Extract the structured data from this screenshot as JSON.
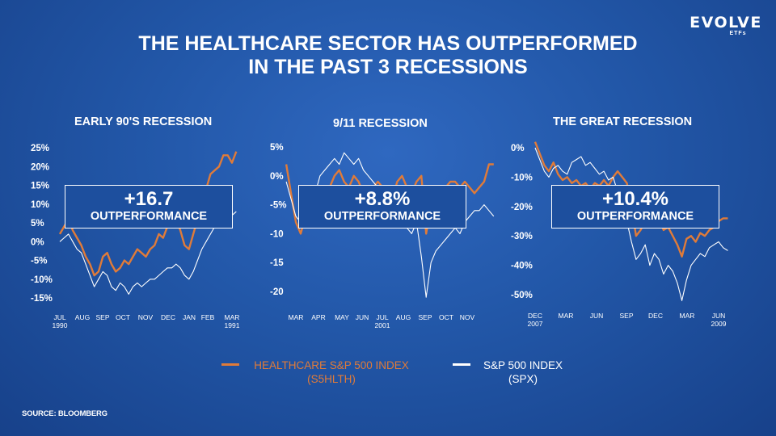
{
  "logo": {
    "main": "EVOLVE",
    "sub": "ETFs"
  },
  "title": {
    "line1": "THE HEALTHCARE SECTOR HAS OUTPERFORMED",
    "line2": "IN THE PAST 3 RECESSIONS"
  },
  "legend": {
    "healthcare_line1": "HEALTHCARE S&P 500 INDEX",
    "healthcare_line2": "(S5HLTH)",
    "spx_line1": "S&P 500 INDEX",
    "spx_line2": "(SPX)"
  },
  "source": "SOURCE: BLOOMBERG",
  "colors": {
    "healthcare": "#e07b39",
    "spx": "#ffffff",
    "background": "#2257a8"
  },
  "chart_data": [
    {
      "type": "line",
      "title": "EARLY 90'S RECESSION",
      "y_ticks": [
        "25%",
        "20%",
        "15%",
        "10%",
        "5%",
        "0%",
        "-5%",
        "-10%",
        "-15%"
      ],
      "y_tick_values": [
        25,
        20,
        15,
        10,
        5,
        0,
        -5,
        -10,
        -15
      ],
      "ylim": [
        -15,
        25
      ],
      "x_ticks": [
        [
          "JUL",
          "1990"
        ],
        [
          "AUG",
          ""
        ],
        [
          "SEP",
          ""
        ],
        [
          "OCT",
          ""
        ],
        [
          "NOV",
          ""
        ],
        [
          "DEC",
          ""
        ],
        [
          "JAN",
          ""
        ],
        [
          "FEB",
          ""
        ],
        [
          "MAR",
          "1991"
        ]
      ],
      "x_tick_positions": [
        0,
        1,
        2,
        3,
        4,
        5,
        6,
        7,
        8
      ],
      "annotation": {
        "value": "+16.7",
        "label": "OUTPERFORMANCE"
      },
      "series": [
        {
          "name": "HEALTHCARE S&P 500 INDEX",
          "x": [
            0,
            0.2,
            0.4,
            0.6,
            0.8,
            1.0,
            1.2,
            1.4,
            1.6,
            1.8,
            2.0,
            2.2,
            2.4,
            2.6,
            2.8,
            3.0,
            3.2,
            3.4,
            3.6,
            3.8,
            4.0,
            4.2,
            4.4,
            4.6,
            4.8,
            5.0,
            5.2,
            5.4,
            5.6,
            5.8,
            6.0,
            6.2,
            6.4,
            6.6,
            6.8,
            7.0,
            7.2,
            7.4,
            7.6,
            7.8,
            8.0,
            8.2
          ],
          "values": [
            2,
            4,
            6,
            3,
            1,
            -1,
            -4,
            -6,
            -9,
            -8,
            -4,
            -3,
            -6,
            -8,
            -7,
            -5,
            -6,
            -4,
            -2,
            -3,
            -4,
            -2,
            -1,
            2,
            1,
            4,
            5,
            6,
            3,
            -1,
            -2,
            2,
            6,
            12,
            14,
            18,
            19,
            20,
            23,
            23,
            21,
            24
          ]
        },
        {
          "name": "S&P 500 INDEX",
          "x": [
            0,
            0.2,
            0.4,
            0.6,
            0.8,
            1.0,
            1.2,
            1.4,
            1.6,
            1.8,
            2.0,
            2.2,
            2.4,
            2.6,
            2.8,
            3.0,
            3.2,
            3.4,
            3.6,
            3.8,
            4.0,
            4.2,
            4.4,
            4.6,
            4.8,
            5.0,
            5.2,
            5.4,
            5.6,
            5.8,
            6.0,
            6.2,
            6.4,
            6.6,
            6.8,
            7.0,
            7.2,
            7.4,
            7.6,
            7.8,
            8.0,
            8.2
          ],
          "values": [
            0,
            1,
            2,
            0,
            -2,
            -3,
            -6,
            -9,
            -12,
            -10,
            -8,
            -9,
            -12,
            -13,
            -11,
            -12,
            -14,
            -12,
            -11,
            -12,
            -11,
            -10,
            -10,
            -9,
            -8,
            -7,
            -7,
            -6,
            -7,
            -9,
            -10,
            -8,
            -5,
            -2,
            0,
            2,
            4,
            5,
            6,
            6,
            7,
            8
          ]
        }
      ]
    },
    {
      "type": "line",
      "title": "9/11 RECESSION",
      "y_ticks": [
        "5%",
        "0%",
        "-5%",
        "-10",
        "-15",
        "-20"
      ],
      "y_tick_values": [
        5,
        0,
        -5,
        -10,
        -15,
        -20
      ],
      "ylim": [
        -20,
        5
      ],
      "x_ticks": [
        [
          "MAR",
          ""
        ],
        [
          "APR",
          ""
        ],
        [
          "MAY",
          ""
        ],
        [
          "JUN",
          ""
        ],
        [
          "JUL",
          "2001"
        ],
        [
          "AUG",
          ""
        ],
        [
          "SEP",
          ""
        ],
        [
          "OCT",
          ""
        ],
        [
          "NOV",
          ""
        ]
      ],
      "x_tick_positions": [
        0,
        1,
        2,
        2.7,
        3.7,
        4.6,
        5.4,
        6.3,
        7.1
      ],
      "annotation": {
        "value": "+8.8%",
        "label": "OUTPERFORMANCE"
      },
      "series": [
        {
          "name": "HEALTHCARE S&P 500 INDEX",
          "x": [
            -0.4,
            -0.2,
            0,
            0.2,
            0.4,
            0.6,
            0.8,
            1.0,
            1.2,
            1.4,
            1.6,
            1.8,
            2.0,
            2.2,
            2.4,
            2.6,
            2.8,
            3.0,
            3.2,
            3.4,
            3.6,
            3.8,
            4.0,
            4.2,
            4.4,
            4.6,
            4.8,
            5.0,
            5.2,
            5.4,
            5.6,
            5.8,
            6.0,
            6.2,
            6.4,
            6.6,
            6.8,
            7.0,
            7.2,
            7.4,
            7.6,
            7.8,
            8.0,
            8.2
          ],
          "values": [
            2,
            -3,
            -8,
            -10,
            -7,
            -5,
            -6,
            -4,
            -3,
            -2,
            0,
            1,
            -1,
            -2,
            0,
            -1,
            -3,
            -2,
            -2,
            -1,
            -2,
            -3,
            -4,
            -1,
            0,
            -2,
            -3,
            -1,
            0,
            -10,
            -5,
            -4,
            -3,
            -2,
            -1,
            -1,
            -2,
            -1,
            -2,
            -3,
            -2,
            -1,
            2,
            2
          ]
        },
        {
          "name": "S&P 500 INDEX",
          "x": [
            -0.4,
            -0.2,
            0,
            0.2,
            0.4,
            0.6,
            0.8,
            1.0,
            1.2,
            1.4,
            1.6,
            1.8,
            2.0,
            2.2,
            2.4,
            2.6,
            2.8,
            3.0,
            3.2,
            3.4,
            3.6,
            3.8,
            4.0,
            4.2,
            4.4,
            4.6,
            4.8,
            5.0,
            5.2,
            5.4,
            5.6,
            5.8,
            6.0,
            6.2,
            6.4,
            6.6,
            6.8,
            7.0,
            7.2,
            7.4,
            7.6,
            7.8,
            8.0,
            8.2
          ],
          "values": [
            -1,
            -4,
            -7,
            -8,
            -6,
            -4,
            -3,
            0,
            1,
            2,
            3,
            2,
            4,
            3,
            2,
            3,
            1,
            0,
            -1,
            -2,
            -3,
            -4,
            -5,
            -6,
            -7,
            -9,
            -10,
            -8,
            -14,
            -21,
            -15,
            -13,
            -12,
            -11,
            -10,
            -9,
            -10,
            -8,
            -7,
            -6,
            -6,
            -5,
            -6,
            -7
          ]
        }
      ]
    },
    {
      "type": "line",
      "title": "THE GREAT RECESSION",
      "y_ticks": [
        "0%",
        "-10%",
        "-20%",
        "-30%",
        "-40%",
        "-50%"
      ],
      "y_tick_values": [
        0,
        -10,
        -20,
        -30,
        -40,
        -50
      ],
      "ylim": [
        -50,
        0
      ],
      "x_ticks": [
        [
          "DEC",
          "2007"
        ],
        [
          "MAR",
          ""
        ],
        [
          "JUN",
          ""
        ],
        [
          "SEP",
          ""
        ],
        [
          "DEC",
          ""
        ],
        [
          "MAR",
          ""
        ],
        [
          "JUN",
          "2009"
        ]
      ],
      "x_tick_positions": [
        0,
        1,
        2,
        3,
        4,
        5,
        6
      ],
      "annotation": {
        "value": "+10.4%",
        "label": "OUTPERFORMANCE"
      },
      "series": [
        {
          "name": "HEALTHCARE S&P 500 INDEX",
          "x": [
            0,
            0.15,
            0.3,
            0.45,
            0.6,
            0.75,
            0.9,
            1.05,
            1.2,
            1.35,
            1.5,
            1.65,
            1.8,
            1.95,
            2.1,
            2.25,
            2.4,
            2.55,
            2.7,
            2.85,
            3.0,
            3.15,
            3.3,
            3.45,
            3.6,
            3.75,
            3.9,
            4.05,
            4.2,
            4.35,
            4.5,
            4.65,
            4.8,
            4.95,
            5.1,
            5.25,
            5.4,
            5.55,
            5.7,
            5.85,
            6.0,
            6.15,
            6.3
          ],
          "values": [
            2,
            -2,
            -6,
            -8,
            -5,
            -9,
            -11,
            -10,
            -12,
            -11,
            -13,
            -12,
            -14,
            -12,
            -13,
            -11,
            -13,
            -10,
            -8,
            -10,
            -12,
            -20,
            -30,
            -28,
            -25,
            -27,
            -26,
            -24,
            -28,
            -27,
            -30,
            -33,
            -37,
            -31,
            -30,
            -32,
            -29,
            -30,
            -28,
            -27,
            -25,
            -24,
            -24
          ]
        },
        {
          "name": "S&P 500 INDEX",
          "x": [
            0,
            0.15,
            0.3,
            0.45,
            0.6,
            0.75,
            0.9,
            1.05,
            1.2,
            1.35,
            1.5,
            1.65,
            1.8,
            1.95,
            2.1,
            2.25,
            2.4,
            2.55,
            2.7,
            2.85,
            3.0,
            3.15,
            3.3,
            3.45,
            3.6,
            3.75,
            3.9,
            4.05,
            4.2,
            4.35,
            4.5,
            4.65,
            4.8,
            4.95,
            5.1,
            5.25,
            5.4,
            5.55,
            5.7,
            5.85,
            6.0,
            6.15,
            6.3
          ],
          "values": [
            0,
            -4,
            -8,
            -10,
            -7,
            -6,
            -8,
            -9,
            -5,
            -4,
            -3,
            -6,
            -5,
            -7,
            -9,
            -8,
            -11,
            -10,
            -15,
            -20,
            -25,
            -32,
            -38,
            -36,
            -33,
            -40,
            -36,
            -38,
            -43,
            -40,
            -42,
            -46,
            -52,
            -45,
            -40,
            -38,
            -36,
            -37,
            -34,
            -33,
            -32,
            -34,
            -35
          ]
        }
      ]
    }
  ]
}
